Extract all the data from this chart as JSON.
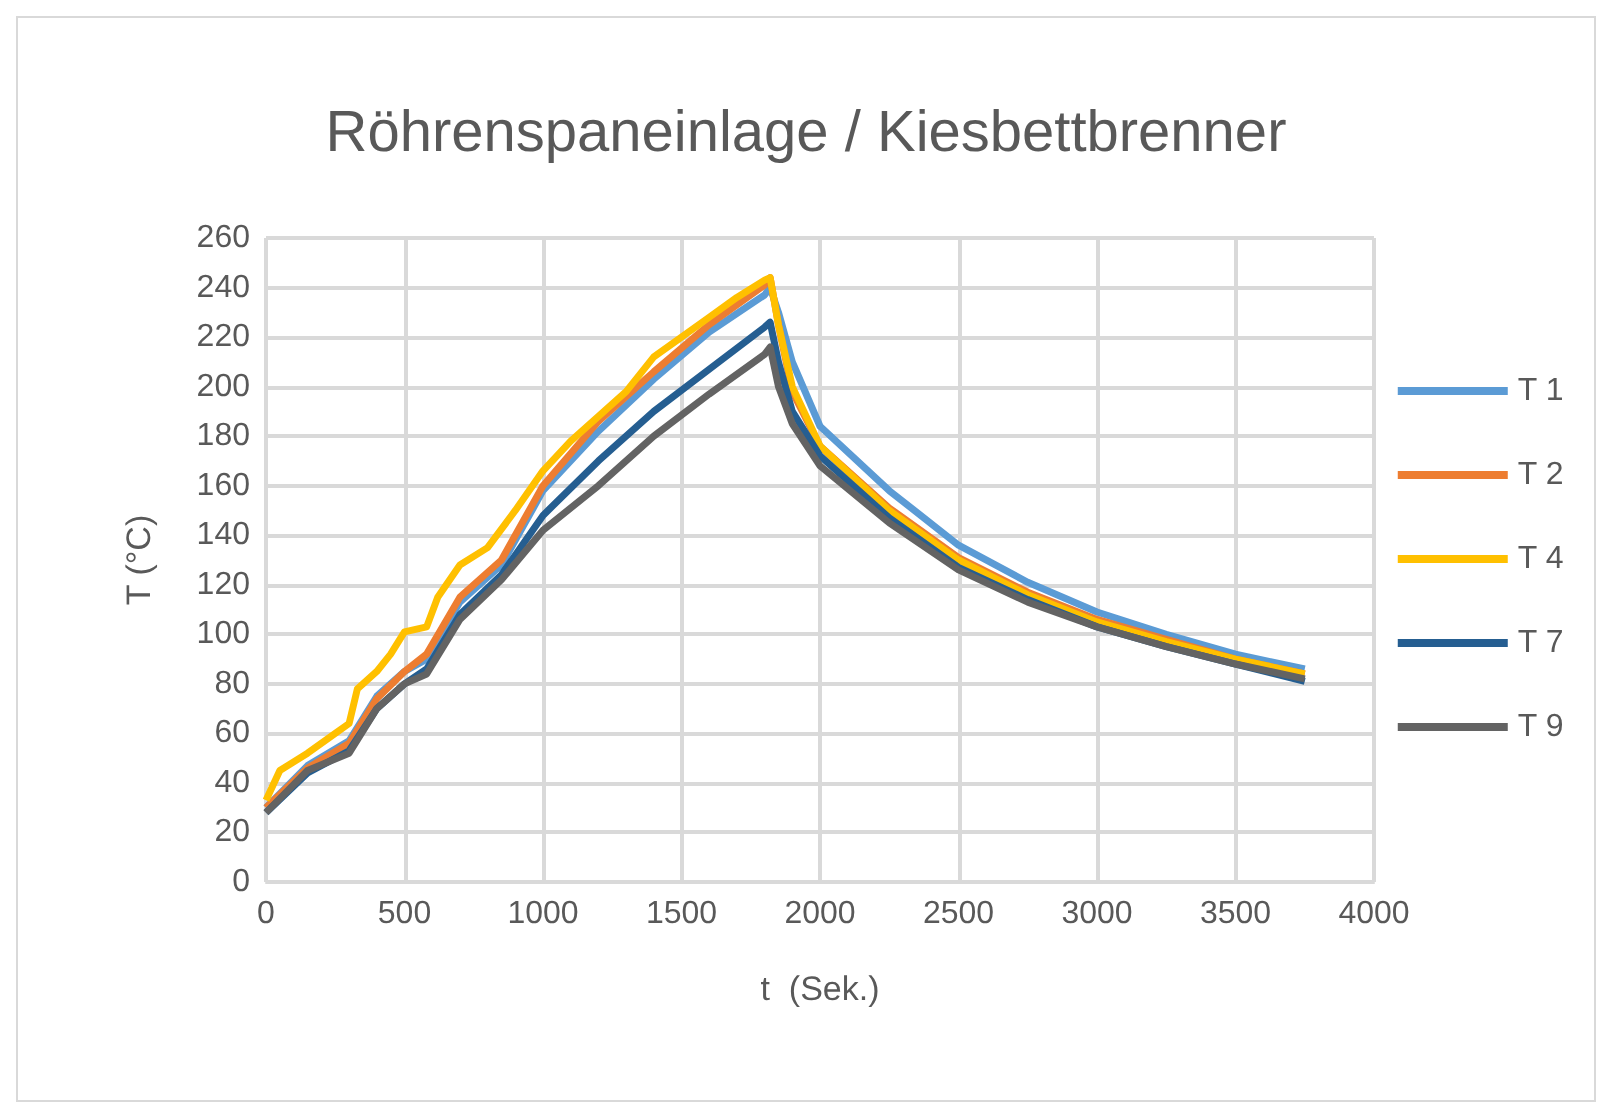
{
  "chart_data": {
    "type": "line",
    "title": "Röhrenspaneinlage / Kiesbettbrenner",
    "xlabel": "t  (Sek.)",
    "ylabel": "T (°C)",
    "xlim": [
      0,
      4000
    ],
    "xticks": [
      0,
      500,
      1000,
      1500,
      2000,
      2500,
      3000,
      3500,
      4000
    ],
    "ylim": [
      0,
      260
    ],
    "yticks": [
      0,
      20,
      40,
      60,
      80,
      100,
      120,
      140,
      160,
      180,
      200,
      220,
      240,
      260
    ],
    "grid": true,
    "legend": "right",
    "marker": "none",
    "line_style": "solid",
    "series": [
      {
        "name": "T 1",
        "color": "#5b9bd5",
        "x": [
          0,
          150,
          300,
          400,
          500,
          580,
          700,
          850,
          1000,
          1200,
          1400,
          1600,
          1800,
          1820,
          1850,
          1900,
          2000,
          2250,
          2500,
          2750,
          3000,
          3250,
          3500,
          3750
        ],
        "values": [
          30,
          47,
          57,
          75,
          85,
          90,
          113,
          128,
          158,
          182,
          203,
          222,
          237,
          240,
          230,
          210,
          184,
          158,
          136,
          121,
          109,
          100,
          92,
          86
        ]
      },
      {
        "name": "T 2",
        "color": "#ed7d31",
        "x": [
          0,
          150,
          300,
          400,
          500,
          580,
          700,
          850,
          1000,
          1200,
          1400,
          1600,
          1800,
          1820,
          1850,
          1900,
          2000,
          2250,
          2500,
          2750,
          3000,
          3250,
          3500,
          3750
        ],
        "values": [
          30,
          46,
          56,
          74,
          85,
          92,
          115,
          130,
          160,
          186,
          206,
          225,
          241,
          244,
          225,
          198,
          176,
          151,
          131,
          117,
          106,
          98,
          90,
          84
        ]
      },
      {
        "name": "T 4",
        "color": "#ffc000",
        "x": [
          0,
          50,
          150,
          250,
          300,
          330,
          400,
          450,
          500,
          580,
          620,
          700,
          800,
          900,
          1000,
          1100,
          1200,
          1300,
          1400,
          1500,
          1600,
          1700,
          1800,
          1820,
          1850,
          1900,
          2000,
          2250,
          2500,
          2750,
          3000,
          3250,
          3500,
          3750
        ],
        "values": [
          33,
          45,
          52,
          60,
          64,
          78,
          85,
          92,
          101,
          103,
          115,
          128,
          135,
          150,
          166,
          178,
          188,
          198,
          212,
          220,
          228,
          236,
          243,
          244,
          225,
          200,
          176,
          150,
          130,
          116,
          105,
          97,
          90,
          84
        ]
      },
      {
        "name": "T 7",
        "color": "#255e91",
        "x": [
          0,
          150,
          300,
          400,
          500,
          580,
          700,
          850,
          1000,
          1200,
          1400,
          1600,
          1800,
          1820,
          1850,
          1900,
          2000,
          2250,
          2500,
          2750,
          3000,
          3250,
          3500,
          3750
        ],
        "values": [
          28,
          44,
          53,
          70,
          80,
          86,
          108,
          124,
          148,
          170,
          190,
          207,
          224,
          226,
          210,
          190,
          172,
          147,
          127,
          114,
          103,
          95,
          88,
          81
        ]
      },
      {
        "name": "T 9",
        "color": "#636363",
        "x": [
          0,
          150,
          300,
          400,
          500,
          580,
          700,
          850,
          1000,
          1200,
          1400,
          1600,
          1800,
          1820,
          1850,
          1900,
          2000,
          2250,
          2500,
          2750,
          3000,
          3250,
          3500,
          3750
        ],
        "values": [
          28,
          45,
          52,
          70,
          80,
          84,
          106,
          122,
          142,
          160,
          180,
          197,
          213,
          216,
          200,
          185,
          168,
          145,
          126,
          113,
          103,
          95,
          88,
          82
        ]
      }
    ]
  }
}
